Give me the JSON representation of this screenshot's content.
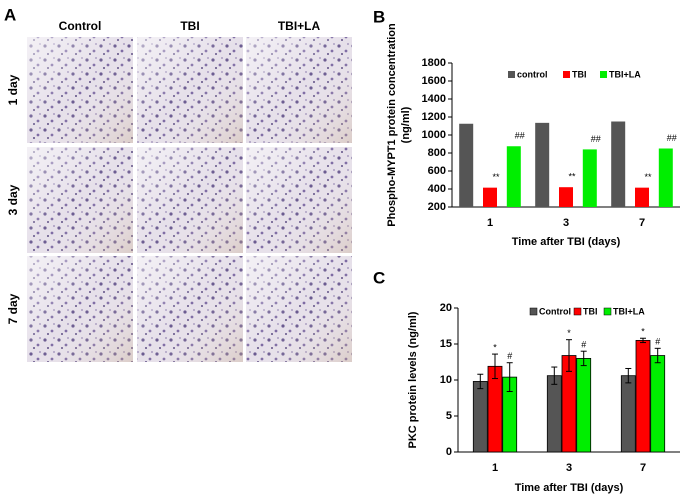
{
  "panel_a": {
    "panel_label": "A",
    "columns": [
      "Control",
      "TBI",
      "TBI+LA"
    ],
    "rows": [
      "1 day",
      "3 day",
      "7 day"
    ]
  },
  "chart_data": [
    {
      "type": "bar",
      "panel_label": "B",
      "ylabel": [
        "Phospho-MYPT1 protein concentration",
        "(ng/ml)"
      ],
      "xlabel": "Time after TBI (days)",
      "categories": [
        "1",
        "3",
        "7"
      ],
      "ylim": [
        200,
        1800
      ],
      "yticks": [
        200,
        400,
        600,
        800,
        1000,
        1200,
        1400,
        1600,
        1800
      ],
      "series": [
        {
          "name": "control",
          "color": "#555555",
          "values": [
            1125,
            1135,
            1150
          ]
        },
        {
          "name": "TBI",
          "color": "#ff0000",
          "values": [
            415,
            420,
            415
          ],
          "annotations": [
            "**",
            "**",
            "**"
          ]
        },
        {
          "name": "TBI+LA",
          "color": "#00ee00",
          "values": [
            875,
            840,
            850
          ],
          "annotations": [
            "##",
            "##",
            "##"
          ]
        }
      ]
    },
    {
      "type": "bar",
      "panel_label": "C",
      "ylabel": [
        "PKC protein levels (ng/ml)"
      ],
      "xlabel": "Time after TBI (days)",
      "categories": [
        "1",
        "3",
        "7"
      ],
      "ylim": [
        0,
        20
      ],
      "yticks": [
        0,
        5,
        10,
        15,
        20
      ],
      "series": [
        {
          "name": "Control",
          "color": "#555555",
          "values": [
            9.8,
            10.6,
            10.6
          ],
          "errors": [
            1.0,
            1.2,
            1.0
          ]
        },
        {
          "name": "TBI",
          "color": "#ff0000",
          "values": [
            11.9,
            13.4,
            15.5
          ],
          "errors": [
            1.7,
            2.2,
            0.3
          ],
          "annotations": [
            "*",
            "*",
            "*"
          ]
        },
        {
          "name": "TBI+LA",
          "color": "#00ee00",
          "values": [
            10.4,
            13.0,
            13.4
          ],
          "errors": [
            2.0,
            1.0,
            1.0
          ],
          "annotations": [
            "#",
            "#",
            "#"
          ]
        }
      ]
    }
  ]
}
